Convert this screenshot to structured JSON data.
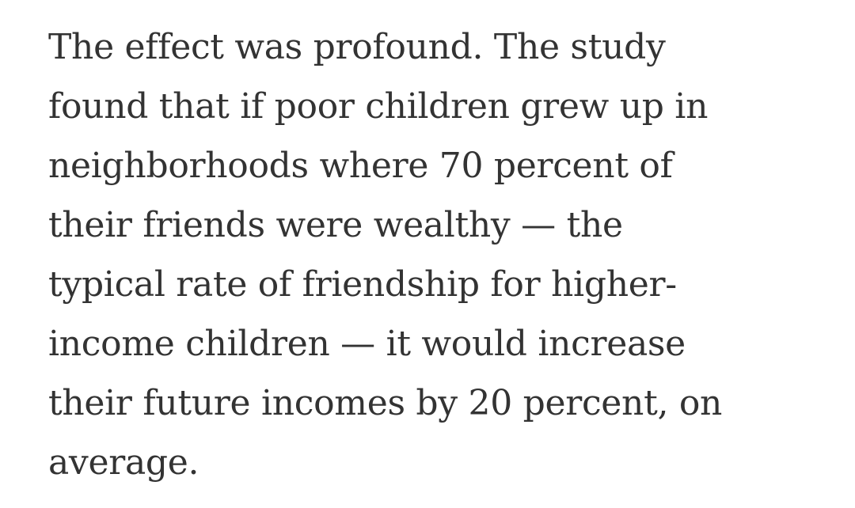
{
  "paragraph": {
    "lines": [
      "The effect was profound. The study",
      "found that if poor children grew up in",
      "neighborhoods where 70 percent of",
      "their friends were wealthy — the",
      "typical rate of friendship for higher-",
      "income children — it would increase",
      "their future incomes by 20 percent, on",
      "average."
    ]
  }
}
